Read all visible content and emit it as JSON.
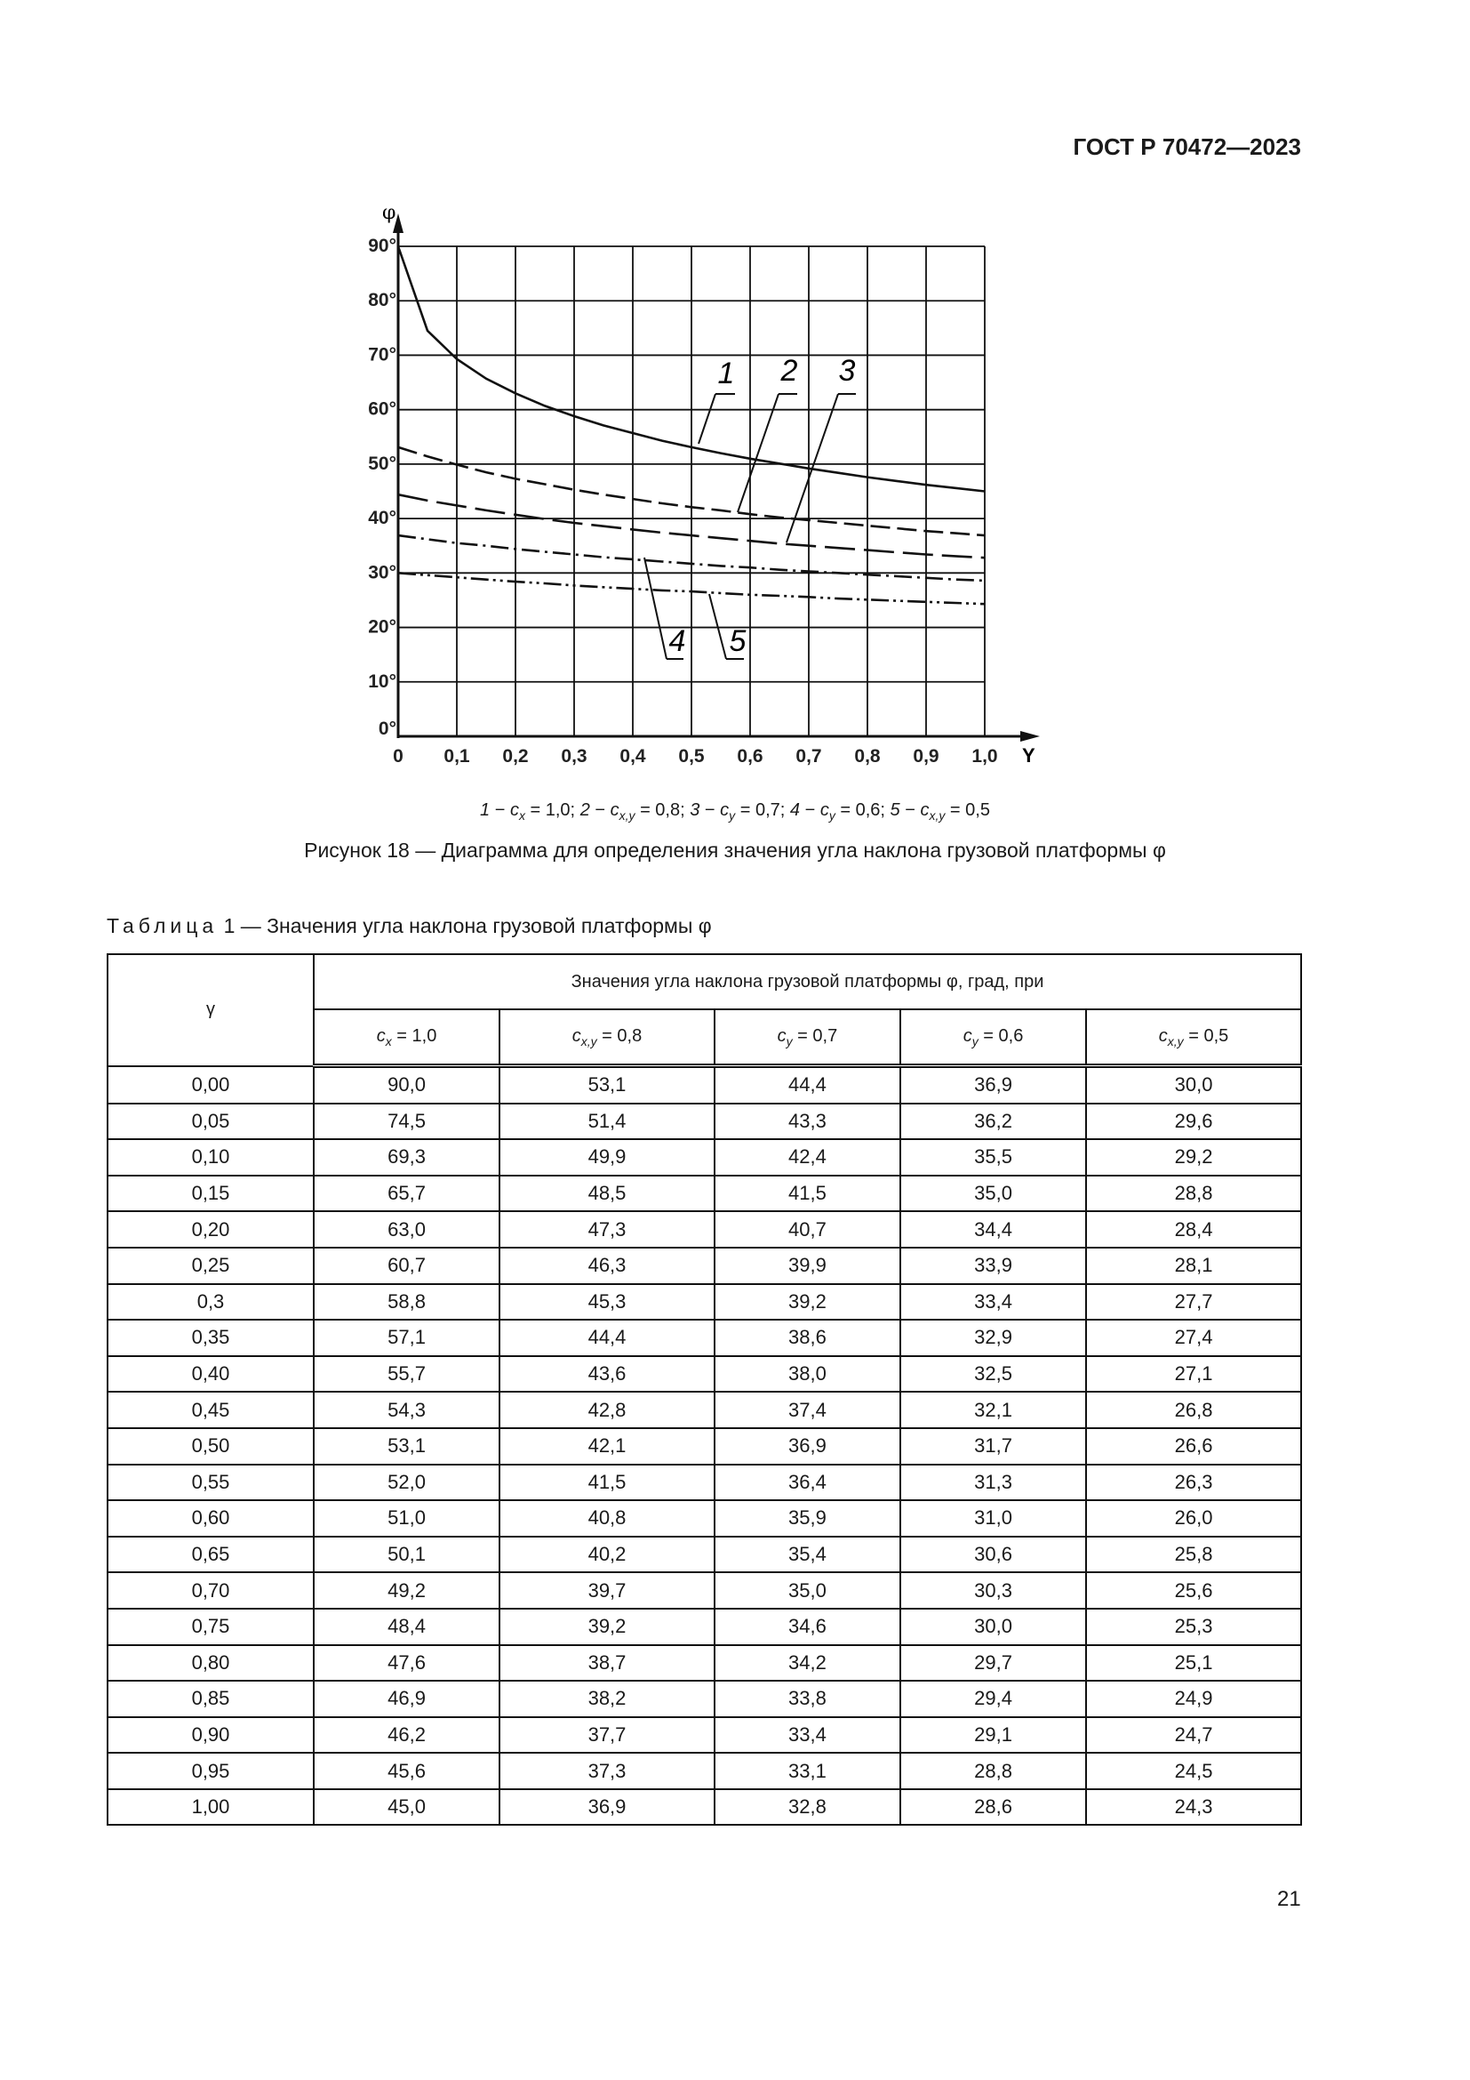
{
  "header": {
    "doc_id": "ГОСТ Р 70472—2023"
  },
  "chart_data": {
    "type": "line",
    "ylabel": "φ",
    "xlabel": "Y",
    "xlim": [
      0,
      1.0
    ],
    "ylim": [
      0,
      90
    ],
    "grid": true,
    "x_ticks": [
      "0",
      "0,1",
      "0,2",
      "0,3",
      "0,4",
      "0,5",
      "0,6",
      "0,7",
      "0,8",
      "0,9",
      "1,0"
    ],
    "y_ticks": [
      "0°",
      "10°",
      "20°",
      "30°",
      "40°",
      "50°",
      "60°",
      "70°",
      "80°",
      "90°"
    ],
    "x": [
      0,
      0.05,
      0.1,
      0.15,
      0.2,
      0.25,
      0.3,
      0.35,
      0.4,
      0.45,
      0.5,
      0.55,
      0.6,
      0.65,
      0.7,
      0.75,
      0.8,
      0.85,
      0.9,
      0.95,
      1.0
    ],
    "series": [
      {
        "name": "1",
        "style": "solid",
        "values": [
          90.0,
          74.5,
          69.3,
          65.7,
          63.0,
          60.7,
          58.8,
          57.1,
          55.7,
          54.3,
          53.1,
          52.0,
          51.0,
          50.1,
          49.2,
          48.4,
          47.6,
          46.9,
          46.2,
          45.6,
          45.0
        ]
      },
      {
        "name": "2",
        "style": "dash",
        "values": [
          53.1,
          51.4,
          49.9,
          48.5,
          47.3,
          46.3,
          45.3,
          44.4,
          43.6,
          42.8,
          42.1,
          41.5,
          40.8,
          40.2,
          39.7,
          39.2,
          38.7,
          38.2,
          37.7,
          37.3,
          36.9
        ]
      },
      {
        "name": "3",
        "style": "long-dash",
        "values": [
          44.4,
          43.3,
          42.4,
          41.5,
          40.7,
          39.9,
          39.2,
          38.6,
          38.0,
          37.4,
          36.9,
          36.4,
          35.9,
          35.4,
          35.0,
          34.6,
          34.2,
          33.8,
          33.4,
          33.1,
          32.8
        ]
      },
      {
        "name": "4",
        "style": "dash-dot",
        "values": [
          36.9,
          36.2,
          35.5,
          35.0,
          34.4,
          33.9,
          33.4,
          32.9,
          32.5,
          32.1,
          31.7,
          31.3,
          31.0,
          30.6,
          30.3,
          30.0,
          29.7,
          29.4,
          29.1,
          28.8,
          28.6
        ]
      },
      {
        "name": "5",
        "style": "dash-dot-dot",
        "values": [
          30.0,
          29.6,
          29.2,
          28.8,
          28.4,
          28.1,
          27.7,
          27.4,
          27.1,
          26.8,
          26.6,
          26.3,
          26.0,
          25.8,
          25.6,
          25.3,
          25.1,
          24.9,
          24.7,
          24.5,
          24.3
        ]
      }
    ]
  },
  "legend": {
    "items": [
      {
        "num": "1",
        "sym": "c",
        "sub": "x",
        "val": "= 1,0;"
      },
      {
        "num": "2",
        "sym": "c",
        "sub": "x,y",
        "val": "= 0,8;"
      },
      {
        "num": "3",
        "sym": "c",
        "sub": "y",
        "val": "= 0,7;"
      },
      {
        "num": "4",
        "sym": "c",
        "sub": "y",
        "val": "= 0,6;"
      },
      {
        "num": "5",
        "sym": "c",
        "sub": "x,y",
        "val": "= 0,5"
      }
    ]
  },
  "figure_caption": "Рисунок 18 — Диаграмма для определения значения угла наклона грузовой платформы φ",
  "table": {
    "label": "Таблица",
    "title": "1 — Значения угла наклона грузовой платформы φ",
    "row_header": "γ",
    "group_header": "Значения угла наклона грузовой платформы φ, град, при",
    "columns": [
      {
        "sym": "c",
        "sub": "x",
        "val": " = 1,0"
      },
      {
        "sym": "c",
        "sub": "x,y",
        "val": " = 0,8"
      },
      {
        "sym": "c",
        "sub": "y",
        "val": " = 0,7"
      },
      {
        "sym": "c",
        "sub": "y",
        "val": " = 0,6"
      },
      {
        "sym": "c",
        "sub": "x,y",
        "val": " = 0,5"
      }
    ],
    "rows": [
      [
        "0,00",
        "90,0",
        "53,1",
        "44,4",
        "36,9",
        "30,0"
      ],
      [
        "0,05",
        "74,5",
        "51,4",
        "43,3",
        "36,2",
        "29,6"
      ],
      [
        "0,10",
        "69,3",
        "49,9",
        "42,4",
        "35,5",
        "29,2"
      ],
      [
        "0,15",
        "65,7",
        "48,5",
        "41,5",
        "35,0",
        "28,8"
      ],
      [
        "0,20",
        "63,0",
        "47,3",
        "40,7",
        "34,4",
        "28,4"
      ],
      [
        "0,25",
        "60,7",
        "46,3",
        "39,9",
        "33,9",
        "28,1"
      ],
      [
        "0,3",
        "58,8",
        "45,3",
        "39,2",
        "33,4",
        "27,7"
      ],
      [
        "0,35",
        "57,1",
        "44,4",
        "38,6",
        "32,9",
        "27,4"
      ],
      [
        "0,40",
        "55,7",
        "43,6",
        "38,0",
        "32,5",
        "27,1"
      ],
      [
        "0,45",
        "54,3",
        "42,8",
        "37,4",
        "32,1",
        "26,8"
      ],
      [
        "0,50",
        "53,1",
        "42,1",
        "36,9",
        "31,7",
        "26,6"
      ],
      [
        "0,55",
        "52,0",
        "41,5",
        "36,4",
        "31,3",
        "26,3"
      ],
      [
        "0,60",
        "51,0",
        "40,8",
        "35,9",
        "31,0",
        "26,0"
      ],
      [
        "0,65",
        "50,1",
        "40,2",
        "35,4",
        "30,6",
        "25,8"
      ],
      [
        "0,70",
        "49,2",
        "39,7",
        "35,0",
        "30,3",
        "25,6"
      ],
      [
        "0,75",
        "48,4",
        "39,2",
        "34,6",
        "30,0",
        "25,3"
      ],
      [
        "0,80",
        "47,6",
        "38,7",
        "34,2",
        "29,7",
        "25,1"
      ],
      [
        "0,85",
        "46,9",
        "38,2",
        "33,8",
        "29,4",
        "24,9"
      ],
      [
        "0,90",
        "46,2",
        "37,7",
        "33,4",
        "29,1",
        "24,7"
      ],
      [
        "0,95",
        "45,6",
        "37,3",
        "33,1",
        "28,8",
        "24,5"
      ],
      [
        "1,00",
        "45,0",
        "36,9",
        "32,8",
        "28,6",
        "24,3"
      ]
    ]
  },
  "page_number": "21"
}
